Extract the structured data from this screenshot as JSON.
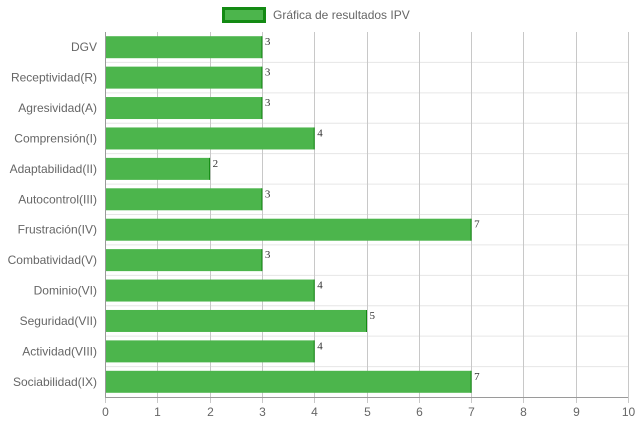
{
  "chart_data": {
    "type": "bar",
    "orientation": "horizontal",
    "legend": {
      "label": "Gráfica de resultados IPV",
      "placement": "top-center"
    },
    "categories": [
      "DGV",
      "Receptividad(R)",
      "Agresividad(A)",
      "Comprensión(I)",
      "Adaptabilidad(II)",
      "Autocontrol(III)",
      "Frustración(IV)",
      "Combatividad(V)",
      "Dominio(VI)",
      "Seguridad(VII)",
      "Actividad(VIII)",
      "Sociabilidad(IX)"
    ],
    "series": [
      {
        "name": "Gráfica de resultados IPV",
        "values": [
          3,
          3,
          3,
          4,
          2,
          3,
          7,
          3,
          4,
          5,
          4,
          7
        ]
      }
    ],
    "data_labels": [
      "3",
      "3",
      "3",
      "4",
      "2",
      "3",
      "7",
      "3",
      "4",
      "5",
      "4",
      "7"
    ],
    "xlim": [
      0,
      10
    ],
    "x_ticks": [
      "0",
      "1",
      "2",
      "3",
      "4",
      "5",
      "6",
      "7",
      "8",
      "9",
      "10"
    ],
    "grid": true,
    "colors": {
      "bar_fill": "#4cb54c",
      "bar_border": "#138a13",
      "grid": "#d9d9d9",
      "text": "#666666"
    }
  }
}
